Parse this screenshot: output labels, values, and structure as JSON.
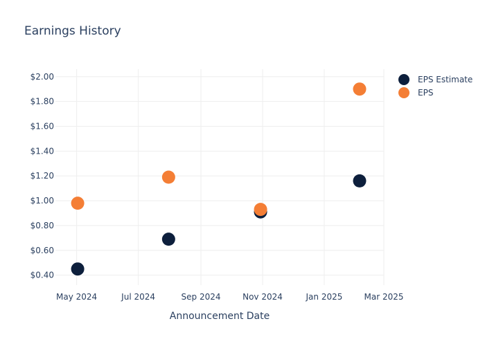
{
  "chart_data": {
    "type": "scatter",
    "title": "Earnings History",
    "xlabel": "Announcement Date",
    "ylabel": "",
    "x_axis_type": "date",
    "xlim": [
      "2024-04-10",
      "2025-03-01"
    ],
    "ylim": [
      0.32,
      2.06
    ],
    "x_ticks": [
      {
        "date": "2024-05-01",
        "label": "May 2024"
      },
      {
        "date": "2024-07-01",
        "label": "Jul 2024"
      },
      {
        "date": "2024-09-01",
        "label": "Sep 2024"
      },
      {
        "date": "2024-11-01",
        "label": "Nov 2024"
      },
      {
        "date": "2025-01-01",
        "label": "Jan 2025"
      },
      {
        "date": "2025-03-01",
        "label": "Mar 2025"
      }
    ],
    "y_ticks": [
      {
        "value": 0.4,
        "label": "$0.40"
      },
      {
        "value": 0.6,
        "label": "$0.60"
      },
      {
        "value": 0.8,
        "label": "$0.80"
      },
      {
        "value": 1.0,
        "label": "$1.00"
      },
      {
        "value": 1.2,
        "label": "$1.20"
      },
      {
        "value": 1.4,
        "label": "$1.40"
      },
      {
        "value": 1.6,
        "label": "$1.60"
      },
      {
        "value": 1.8,
        "label": "$1.80"
      },
      {
        "value": 2.0,
        "label": "$2.00"
      }
    ],
    "grid": true,
    "legend_position": "top-right",
    "series": [
      {
        "name": "EPS Estimate",
        "color": "#0d1f3c",
        "points": [
          {
            "x": "2024-05-02",
            "y": 0.45
          },
          {
            "x": "2024-07-31",
            "y": 0.69
          },
          {
            "x": "2024-10-30",
            "y": 0.91
          },
          {
            "x": "2025-02-05",
            "y": 1.16
          }
        ]
      },
      {
        "name": "EPS",
        "color": "#f47e35",
        "points": [
          {
            "x": "2024-05-02",
            "y": 0.98
          },
          {
            "x": "2024-07-31",
            "y": 1.19
          },
          {
            "x": "2024-10-30",
            "y": 0.93
          },
          {
            "x": "2025-02-05",
            "y": 1.9
          }
        ]
      }
    ]
  }
}
